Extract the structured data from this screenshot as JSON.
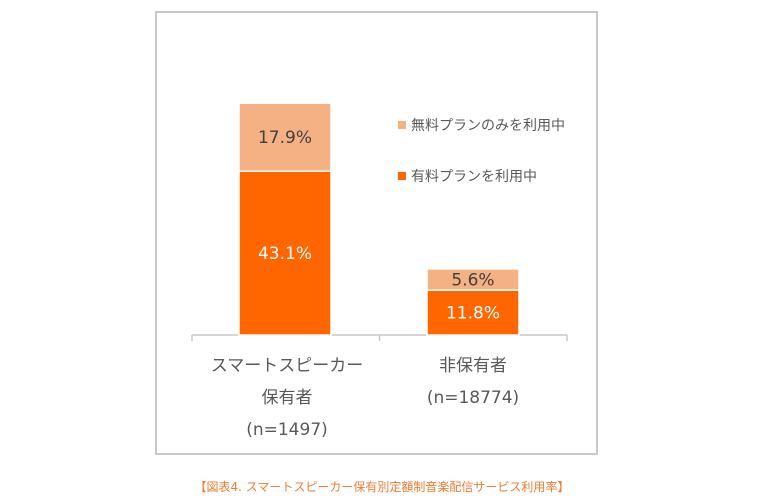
{
  "caption": "【図表4. スマートスピーカー保有別定額制音楽配信サービス利用率】",
  "chart_data": {
    "type": "bar",
    "stacked": true,
    "categories": [
      "スマートスピーカー保有者",
      "非保有者"
    ],
    "category_labels": [
      [
        "スマートスピーカー",
        "保有者",
        "(n=1497)"
      ],
      [
        "非保有者",
        "(n=18774)"
      ]
    ],
    "series": [
      {
        "name": "有料プランを利用中",
        "values": [
          43.1,
          11.8
        ],
        "labels": [
          "43.1%",
          "11.8%"
        ],
        "color": "#ff6600",
        "label_color": "#ffffff"
      },
      {
        "name": "無料プランのみを利用中",
        "values": [
          17.9,
          5.6
        ],
        "labels": [
          "17.9%",
          "5.6%"
        ],
        "color": "#f4b183",
        "label_color": "#404040"
      }
    ],
    "legend": [
      "無料プランのみを利用中",
      "有料プランを利用中"
    ],
    "legend_position": "right",
    "ylim": [
      0,
      65
    ],
    "grid": false,
    "xlabel": "",
    "ylabel": ""
  }
}
